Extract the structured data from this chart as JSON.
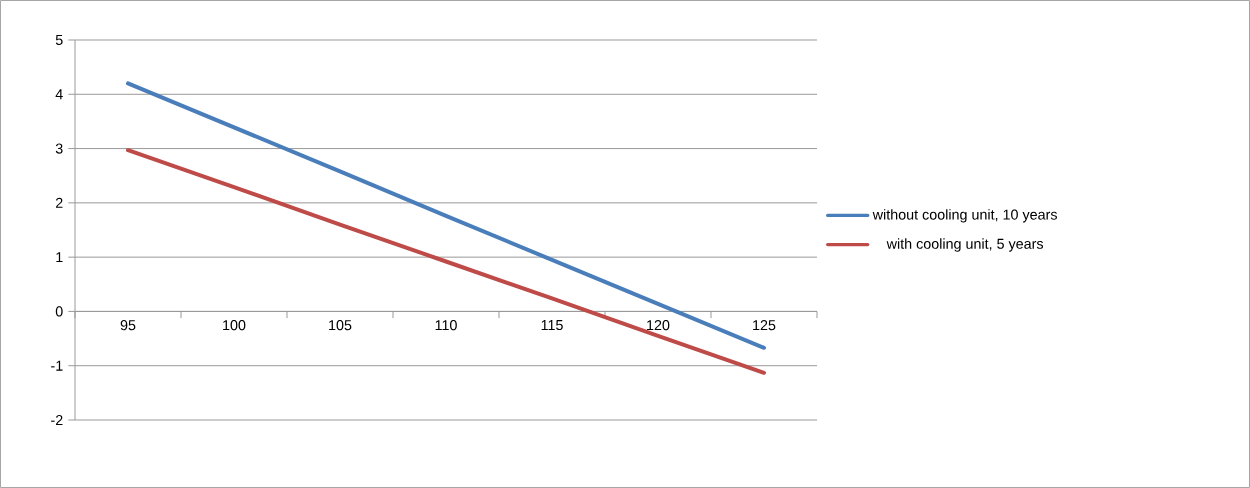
{
  "chart_data": {
    "type": "line",
    "categories": [
      "95",
      "100",
      "105",
      "110",
      "115",
      "120",
      "125"
    ],
    "series": [
      {
        "name": "without cooling unit, 10 years",
        "color": "#4a7ebb",
        "values": [
          4.2,
          3.39,
          2.58,
          1.76,
          0.95,
          0.14,
          -0.67
        ]
      },
      {
        "name": "with cooling unit, 5 years",
        "color": "#be4b48",
        "values": [
          2.97,
          2.29,
          1.6,
          0.92,
          0.24,
          -0.45,
          -1.13
        ]
      }
    ],
    "ylim": [
      -2,
      5
    ],
    "yticks": [
      -2,
      -1,
      0,
      1,
      2,
      3,
      4,
      5
    ],
    "grid": "y",
    "legend": "right",
    "marker": "none",
    "line_style": "solid"
  }
}
